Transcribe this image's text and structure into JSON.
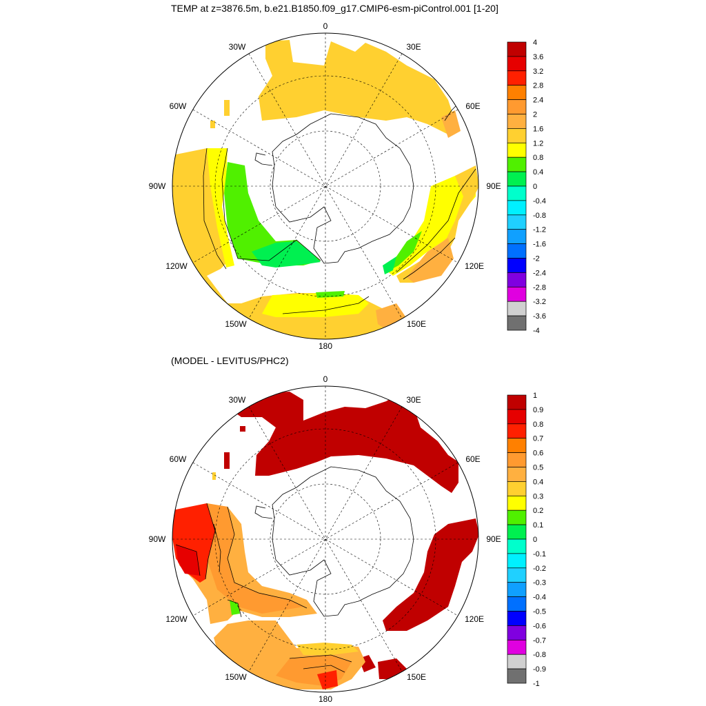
{
  "top_panel": {
    "title": "TEMP at z=3876.5m, b.e21.B1850.f09_g17.CMIP6-esm-piControl.001 [1-20]",
    "lon_labels": [
      "0",
      "30E",
      "60E",
      "90E",
      "120E",
      "150E",
      "180",
      "150W",
      "120W",
      "90W",
      "60W",
      "30W"
    ],
    "colorbar_levels": [
      "4",
      "3.6",
      "3.2",
      "2.8",
      "2.4",
      "2",
      "1.6",
      "1.2",
      "0.8",
      "0.4",
      "0",
      "-0.4",
      "-0.8",
      "-1.2",
      "-1.6",
      "-2",
      "-2.4",
      "-2.8",
      "-3.2",
      "-3.6",
      "-4"
    ]
  },
  "bottom_panel": {
    "title": "(MODEL - LEVITUS/PHC2)",
    "lon_labels": [
      "0",
      "30E",
      "60E",
      "90E",
      "120E",
      "150E",
      "180",
      "150W",
      "120W",
      "90W",
      "60W",
      "30W"
    ],
    "colorbar_levels": [
      "1",
      "0.9",
      "0.8",
      "0.7",
      "0.6",
      "0.5",
      "0.4",
      "0.3",
      "0.2",
      "0.1",
      "0",
      "-0.1",
      "-0.2",
      "-0.3",
      "-0.4",
      "-0.5",
      "-0.6",
      "-0.7",
      "-0.8",
      "-0.9",
      "-1"
    ]
  },
  "colorbar_colors": [
    "#c00000",
    "#e60000",
    "#ff2000",
    "#ff8000",
    "#ff9a30",
    "#ffb040",
    "#ffd030",
    "#ffff00",
    "#50f000",
    "#00f050",
    "#00ffcc",
    "#00f0ff",
    "#20d0ff",
    "#10a0ff",
    "#0070ff",
    "#0000ff",
    "#8000e0",
    "#e000e0",
    "#d0d0d0",
    "#707070"
  ]
}
